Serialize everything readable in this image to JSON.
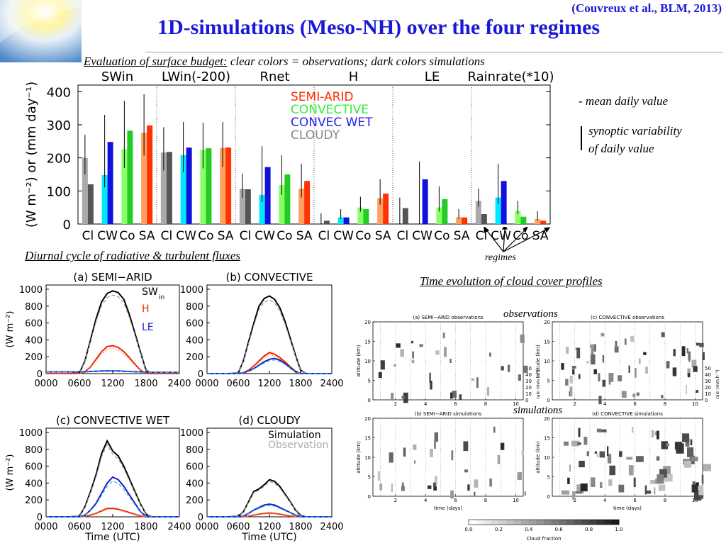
{
  "citation": "(Couvreux et al., BLM, 2013)",
  "title": "1D-simulations (Meso-NH) over the four regimes",
  "eval_header": {
    "underlined": "Evaluation of surface budget:",
    "rest": " clear colors = observations; dark colors simulations"
  },
  "diurnal_header": "Diurnal cycle of radiative & turbulent fluxes",
  "cloud_header": "Time evolution of cloud cover profiles",
  "legend_notes": {
    "mean": "- mean daily value",
    "synoptic_line1": "synoptic variability",
    "synoptic_line2": "of daily value"
  },
  "regimes_label": "regimes",
  "observations_label": "observations",
  "simulations_label": "simulations",
  "colors": {
    "semi_arid": "#ff2a00",
    "convective": "#33ee33",
    "convec_wet": "#2222ee",
    "cloudy": "#888888",
    "title": "#1a1ad6"
  },
  "chart_data": [
    {
      "type": "bar",
      "ylabel": "(W m⁻²) or (mm day⁻¹)",
      "ylim": [
        0,
        420
      ],
      "yticks": [
        0,
        100,
        200,
        300,
        400
      ],
      "groups": [
        "SWin",
        "LWin(-200)",
        "Rnet",
        "H",
        "LE",
        "Rainrate(*10)"
      ],
      "categories": [
        "Cl",
        "CW",
        "Co",
        "SA"
      ],
      "legend": [
        "SEMI-ARID",
        "CONVECTIVE",
        "CONVEC WET",
        "CLOUDY"
      ],
      "legend_colors": [
        "#ff2a00",
        "#33ee33",
        "#2222ee",
        "#888888"
      ],
      "obs_colors": [
        "#aaaaaa",
        "#00e8ff",
        "#88ff66",
        "#ffa060"
      ],
      "sim_colors": [
        "#555555",
        "#1111dd",
        "#22cc22",
        "#ff3300"
      ],
      "values": [
        [
          [
            200,
            120
          ],
          [
            148,
            248
          ],
          [
            226,
            282
          ],
          [
            276,
            298
          ]
        ],
        [
          [
            216,
            218
          ],
          [
            208,
            231
          ],
          [
            224,
            229
          ],
          [
            230,
            231
          ]
        ],
        [
          [
            106,
            105
          ],
          [
            88,
            172
          ],
          [
            118,
            150
          ],
          [
            107,
            130
          ]
        ],
        [
          [
            0,
            10
          ],
          [
            20,
            20
          ],
          [
            50,
            45
          ],
          [
            78,
            92
          ]
        ],
        [
          [
            0,
            48
          ],
          [
            0,
            135
          ],
          [
            50,
            75
          ],
          [
            20,
            20
          ]
        ],
        [
          [
            70,
            30
          ],
          [
            80,
            130
          ],
          [
            40,
            22
          ],
          [
            15,
            10
          ]
        ]
      ]
    },
    {
      "type": "line",
      "panels": [
        "(a) SEMI−ARID",
        "(b) CONVECTIVE",
        "(c) CONVECTIVE WET",
        "(d) CLOUDY"
      ],
      "xticks": [
        "0000",
        "0600",
        "1200",
        "1800",
        "2400"
      ],
      "yticks": [
        0,
        200,
        400,
        600,
        800,
        1000
      ],
      "ylim": [
        0,
        1050
      ],
      "ylabel": "(W m⁻²)",
      "xlabel": "Time (UTC)",
      "legend_a": {
        "swin": "SW",
        "swin_sub": "in",
        "h": "H",
        "le": "LE"
      },
      "legend_d": {
        "sim": "Simulation",
        "obs": "Observation"
      },
      "hours": [
        0,
        2,
        4,
        6,
        7,
        8,
        9,
        10,
        11,
        12,
        13,
        14,
        15,
        16,
        17,
        18,
        19,
        20,
        22,
        24
      ],
      "series": [
        {
          "sw": [
            0,
            0,
            0,
            5,
            150,
            400,
            650,
            850,
            950,
            980,
            960,
            880,
            700,
            480,
            250,
            40,
            0,
            0,
            0,
            0
          ],
          "h": [
            0,
            0,
            0,
            0,
            20,
            80,
            170,
            260,
            320,
            330,
            310,
            260,
            190,
            110,
            40,
            0,
            0,
            0,
            0,
            0
          ],
          "le": [
            20,
            20,
            20,
            20,
            22,
            25,
            28,
            30,
            32,
            32,
            30,
            28,
            25,
            22,
            20,
            18,
            15,
            15,
            15,
            15
          ]
        },
        {
          "sw": [
            0,
            0,
            0,
            5,
            150,
            380,
            600,
            800,
            890,
            920,
            880,
            780,
            620,
            420,
            220,
            40,
            0,
            0,
            0,
            0
          ],
          "h": [
            0,
            0,
            0,
            0,
            10,
            40,
            90,
            150,
            210,
            250,
            230,
            190,
            140,
            80,
            30,
            0,
            0,
            0,
            0,
            0
          ],
          "le": [
            0,
            0,
            0,
            0,
            10,
            30,
            60,
            100,
            140,
            170,
            180,
            160,
            120,
            70,
            20,
            0,
            0,
            0,
            0,
            0
          ]
        },
        {
          "sw": [
            0,
            0,
            0,
            5,
            120,
            300,
            500,
            750,
            900,
            780,
            720,
            600,
            450,
            300,
            150,
            30,
            0,
            0,
            0,
            0
          ],
          "h": [
            0,
            0,
            0,
            0,
            5,
            20,
            40,
            70,
            100,
            100,
            90,
            70,
            50,
            30,
            10,
            0,
            0,
            0,
            0,
            0
          ],
          "le": [
            0,
            0,
            0,
            0,
            20,
            80,
            160,
            280,
            400,
            470,
            440,
            360,
            260,
            160,
            60,
            5,
            0,
            0,
            0,
            0
          ]
        },
        {
          "sw": [
            0,
            0,
            0,
            5,
            60,
            180,
            300,
            330,
            380,
            440,
            420,
            360,
            270,
            180,
            80,
            15,
            0,
            0,
            0,
            0
          ],
          "h": [
            0,
            0,
            0,
            0,
            2,
            8,
            20,
            30,
            40,
            45,
            40,
            30,
            20,
            10,
            5,
            0,
            0,
            0,
            0,
            0
          ],
          "le": [
            0,
            0,
            0,
            0,
            10,
            40,
            80,
            110,
            140,
            150,
            140,
            110,
            80,
            50,
            20,
            0,
            0,
            0,
            0,
            0
          ]
        }
      ]
    },
    {
      "type": "heatmap",
      "panels": [
        "(a) SEMI−ARID observations",
        "(c) CONVECTIVE observations",
        "(b) SEMI−ARID simulations",
        "(d) CONVECTIVE simulations"
      ],
      "xlabel": "time (days)",
      "ylabel": "altitude (km)",
      "rain_label": "rain (mm h⁻¹)",
      "xticks": [
        2,
        4,
        6,
        8,
        10
      ],
      "yticks": [
        0,
        5,
        10,
        15,
        20
      ],
      "rain_ticks": [
        0,
        10,
        20,
        30,
        40,
        50
      ],
      "colorbar_label": "Cloud fraction",
      "colorbar_ticks": [
        "0.0",
        "0.2",
        "0.4",
        "0.6",
        "0.8",
        "1.0"
      ]
    }
  ]
}
